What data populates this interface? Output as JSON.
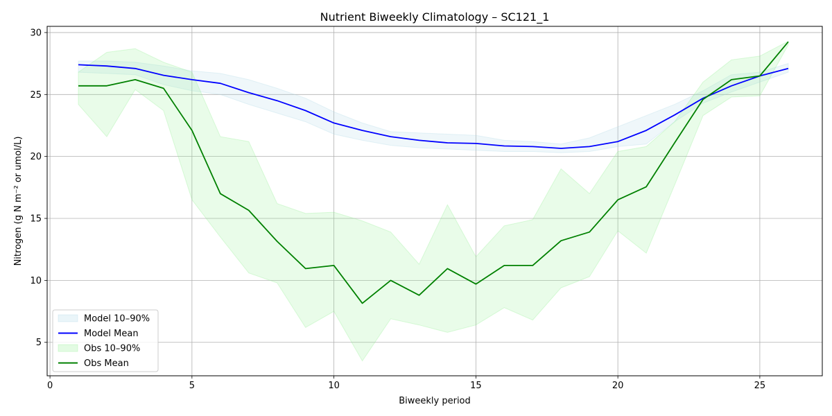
{
  "chart_data": {
    "type": "line",
    "title": "Nutrient Biweekly Climatology – SC121_1",
    "xlabel": "Biweekly period",
    "ylabel": "Nitrogen (g N m⁻² or umol/L)",
    "xlim": [
      -0.1,
      27.2
    ],
    "ylim": [
      2.3,
      30.5
    ],
    "xticks": [
      0,
      5,
      10,
      15,
      20,
      25
    ],
    "yticks": [
      5,
      10,
      15,
      20,
      25,
      30
    ],
    "grid": true,
    "legend_position": "lower-left",
    "x": [
      1,
      2,
      3,
      4,
      5,
      6,
      7,
      8,
      9,
      10,
      11,
      12,
      13,
      14,
      15,
      16,
      17,
      18,
      19,
      20,
      21,
      22,
      23,
      24,
      25,
      26
    ],
    "bands": [
      {
        "name": "Model 10–90%",
        "color": "#add8e6",
        "opacity": 0.2,
        "lower": [
          26.8,
          26.7,
          26.6,
          25.8,
          25.3,
          25.0,
          24.2,
          23.5,
          22.8,
          21.8,
          21.3,
          20.9,
          20.7,
          20.6,
          20.5,
          20.4,
          20.4,
          20.3,
          20.4,
          20.8,
          21.0,
          22.8,
          24.3,
          25.2,
          26.0,
          26.8
        ],
        "upper": [
          27.7,
          27.7,
          27.6,
          27.3,
          26.9,
          26.7,
          26.2,
          25.5,
          24.7,
          23.6,
          22.7,
          22.0,
          21.9,
          21.8,
          21.7,
          21.3,
          21.2,
          21.0,
          21.5,
          22.4,
          23.3,
          24.2,
          25.3,
          26.6,
          26.8,
          27.5
        ]
      },
      {
        "name": "Obs 10–90%",
        "color": "#90ee90",
        "opacity": 0.2,
        "lower": [
          24.2,
          21.6,
          25.4,
          23.7,
          16.5,
          13.5,
          10.6,
          9.8,
          6.2,
          7.5,
          3.5,
          6.9,
          6.4,
          5.8,
          6.4,
          7.8,
          6.8,
          9.4,
          10.3,
          14.0,
          12.2,
          17.7,
          23.3,
          24.8,
          24.9,
          29.0
        ],
        "upper": [
          26.8,
          28.4,
          28.7,
          27.6,
          26.8,
          21.6,
          21.2,
          16.2,
          15.4,
          15.5,
          14.8,
          13.9,
          11.3,
          16.1,
          11.9,
          14.4,
          14.9,
          19.0,
          17.0,
          20.4,
          20.8,
          22.8,
          26.0,
          27.8,
          28.1,
          29.3
        ]
      }
    ],
    "series": [
      {
        "name": "Model Mean",
        "color": "#0000ff",
        "values": [
          27.4,
          27.3,
          27.1,
          26.55,
          26.2,
          25.9,
          25.15,
          24.5,
          23.7,
          22.7,
          22.1,
          21.6,
          21.3,
          21.1,
          21.05,
          20.85,
          20.8,
          20.65,
          20.8,
          21.2,
          22.1,
          23.35,
          24.7,
          25.7,
          26.5,
          27.1
        ]
      },
      {
        "name": "Obs Mean",
        "color": "#008000",
        "values": [
          25.7,
          25.7,
          26.2,
          25.5,
          22.1,
          17.0,
          15.65,
          13.15,
          10.95,
          11.2,
          8.15,
          10.0,
          8.8,
          10.95,
          9.7,
          11.2,
          11.2,
          13.2,
          13.9,
          16.5,
          17.55,
          21.1,
          24.6,
          26.2,
          26.5,
          29.25
        ]
      }
    ],
    "legend": [
      {
        "label": "Model 10–90%",
        "kind": "band",
        "color": "#add8e6"
      },
      {
        "label": "Model Mean",
        "kind": "line",
        "color": "#0000ff"
      },
      {
        "label": "Obs 10–90%",
        "kind": "band",
        "color": "#90ee90"
      },
      {
        "label": "Obs Mean",
        "kind": "line",
        "color": "#008000"
      }
    ]
  }
}
